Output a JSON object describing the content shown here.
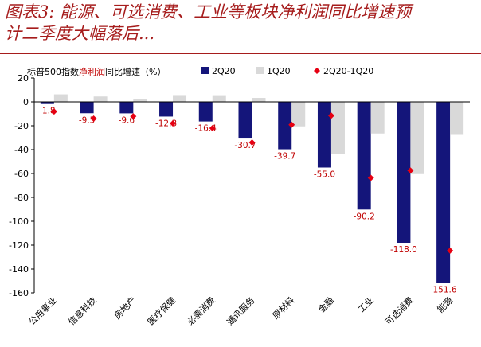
{
  "header": {
    "title_line1": "图表3: 能源、可选消费、工业等板块净利润同比增速预",
    "title_line2": "计二季度大幅落后..."
  },
  "colors": {
    "title": "#a61c1c",
    "bar_2q20": "#14157a",
    "bar_1q20": "#d9d9d9",
    "marker": "#e60012",
    "label": "#c00000"
  },
  "chart_data": {
    "type": "bar",
    "ylabel_parts": [
      "标普500指数",
      "净利润",
      "同比增速（%）"
    ],
    "ylim": [
      -160,
      20
    ],
    "yticks": [
      20,
      0,
      -20,
      -40,
      -60,
      -80,
      -100,
      -120,
      -140,
      -160
    ],
    "categories": [
      "公用事业",
      "信息科技",
      "房地产",
      "医疗保健",
      "必需消费",
      "通讯服务",
      "原材料",
      "金融",
      "工业",
      "可选消费",
      "能源"
    ],
    "series": [
      {
        "name": "2Q20",
        "type": "bar",
        "values": [
          -1.8,
          -9.5,
          -9.6,
          -12.3,
          -16.4,
          -30.7,
          -39.7,
          -55.0,
          -90.2,
          -118.0,
          -151.6
        ]
      },
      {
        "name": "1Q20",
        "type": "bar",
        "values": [
          6.3,
          4.5,
          2.5,
          5.7,
          5.6,
          3.3,
          -20.5,
          -43.5,
          -26.5,
          -60.5,
          -27.0
        ]
      },
      {
        "name": "2Q20-1Q20",
        "type": "marker",
        "values": [
          -8.1,
          -14.0,
          -12.1,
          -18.0,
          -22.0,
          -34.0,
          -19.2,
          -11.5,
          -63.7,
          -57.5,
          -124.6
        ]
      }
    ],
    "data_labels": [
      "-1.8",
      "-9.5",
      "-9.6",
      "-12.3",
      "-16.4",
      "-30.7",
      "-39.7",
      "-55.0",
      "-90.2",
      "-118.0",
      "-151.6"
    ],
    "legend_position": "top-right"
  }
}
